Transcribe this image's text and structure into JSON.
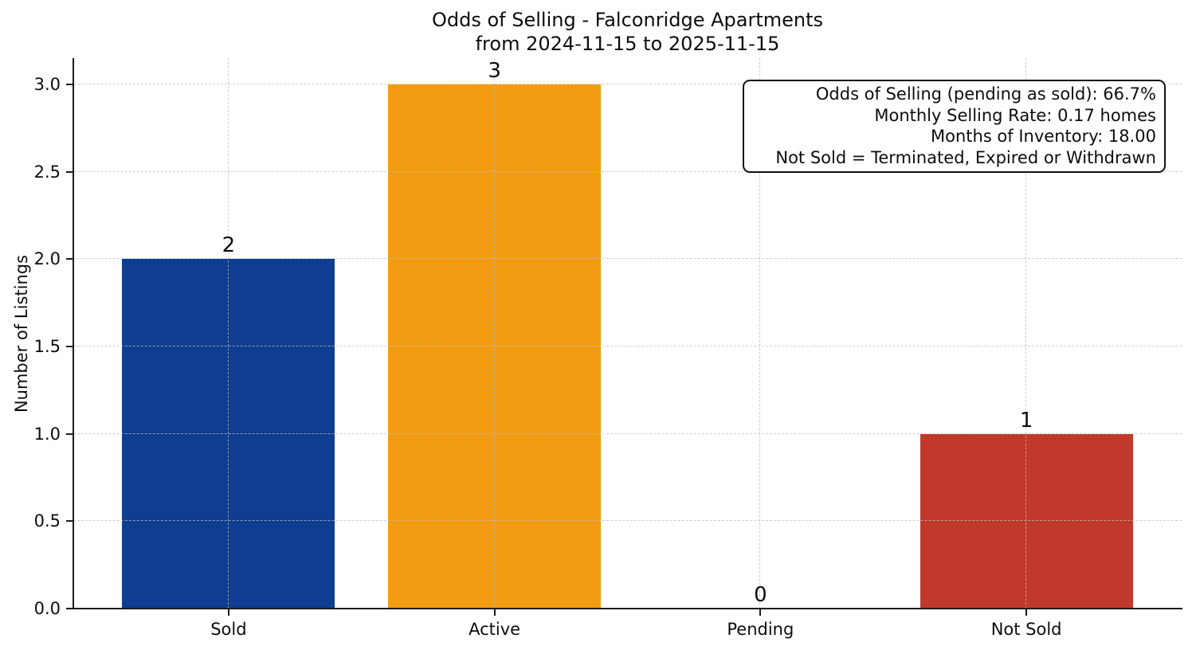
{
  "chart_data": {
    "type": "bar",
    "title": "Odds of Selling - Falconridge Apartments",
    "subtitle": "from 2024-11-15 to 2025-11-15",
    "ylabel": "Number of Listings",
    "xlabel": "",
    "categories": [
      "Sold",
      "Active",
      "Pending",
      "Not Sold"
    ],
    "values": [
      2,
      3,
      0,
      1
    ],
    "value_labels": [
      "2",
      "3",
      "0",
      "1"
    ],
    "bar_colors": [
      "#0e3d91",
      "#f39c12",
      null,
      "#c0392b"
    ],
    "yticks": [
      0,
      0.5,
      1,
      1.5,
      2,
      2.5,
      3
    ],
    "ytick_labels": [
      "0.0",
      "0.5",
      "1.0",
      "1.5",
      "2.0",
      "2.5",
      "3.0"
    ],
    "ylim": [
      0,
      3.15
    ],
    "grid": "dashed",
    "legend_position": "none",
    "annotation_box": {
      "align": "right",
      "lines": [
        "Odds of Selling (pending as sold): 66.7%",
        "Monthly Selling Rate: 0.17 homes",
        "Months of Inventory: 18.00",
        "Not Sold = Terminated, Expired or Withdrawn"
      ]
    },
    "colors": {
      "sold_bar": "#0e3d91",
      "active_bar": "#f39c12",
      "not_sold_bar": "#c0392b",
      "grid": "#d9d9d9",
      "axis": "#1c1c1c"
    }
  }
}
